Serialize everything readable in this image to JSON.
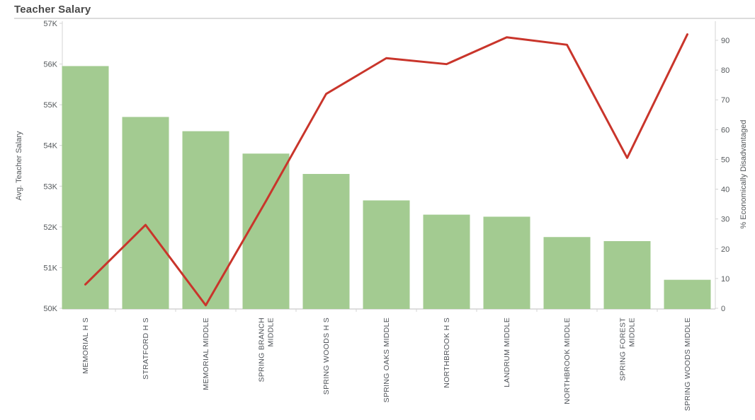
{
  "title": "Teacher Salary",
  "chart_data": {
    "type": "bar",
    "subtype": "combo bar + line, dual axis",
    "title": "Teacher Salary",
    "categories": [
      "MEMORIAL H S",
      "STRATFORD H S",
      "MEMORIAL MIDDLE",
      "SPRING BRANCH MIDDLE",
      "SPRING WOODS H S",
      "SPRING OAKS MIDDLE",
      "NORTHBROOK H S",
      "LANDRUM MIDDLE",
      "NORTHBROOK MIDDLE",
      "SPRING FOREST MIDDLE",
      "SPRING WOODS MIDDLE"
    ],
    "category_label_lines": [
      [
        "MEMORIAL H S"
      ],
      [
        "STRATFORD H S"
      ],
      [
        "MEMORIAL MIDDLE"
      ],
      [
        "SPRING BRANCH",
        "MIDDLE"
      ],
      [
        "SPRING WOODS H S"
      ],
      [
        "SPRING OAKS MIDDLE"
      ],
      [
        "NORTHBROOK H S"
      ],
      [
        "LANDRUM MIDDLE"
      ],
      [
        "NORTHBROOK MIDDLE"
      ],
      [
        "SPRING FOREST",
        "MIDDLE"
      ],
      [
        "SPRING WOODS MIDDLE"
      ]
    ],
    "series": [
      {
        "name": "Avg. Teacher Salary",
        "type": "bar",
        "axis": "left",
        "color": "#a3cb91",
        "values": [
          55950,
          54700,
          54350,
          53800,
          53300,
          52650,
          52300,
          52250,
          51750,
          51650,
          50700
        ]
      },
      {
        "name": "% Economically Disadvantaged",
        "type": "line",
        "axis": "right",
        "color": "#c9352b",
        "values": [
          8,
          28,
          1,
          36,
          72,
          84,
          82,
          91,
          88.5,
          50.5,
          92
        ]
      }
    ],
    "left_axis": {
      "title": "Avg. Teacher Salary",
      "min": 50000,
      "max": 57000,
      "tick_labels": [
        "57K",
        "56K",
        "55K",
        "54K",
        "53K",
        "52K",
        "51K",
        "50K"
      ],
      "tick_values": [
        57000,
        56000,
        55000,
        54000,
        53000,
        52000,
        51000,
        50000
      ]
    },
    "right_axis": {
      "title": "% Economically Disadvantaged",
      "min": 0,
      "max": 90,
      "tick_labels": [
        "90",
        "80",
        "70",
        "60",
        "50",
        "40",
        "30",
        "20",
        "10",
        "0"
      ],
      "tick_values": [
        90,
        80,
        70,
        60,
        50,
        40,
        30,
        20,
        10,
        0
      ]
    },
    "grid": false,
    "legend": "none"
  },
  "colors": {
    "bar": "#a3cb91",
    "line": "#c9352b",
    "title_text": "#4a4a4a",
    "axis_text": "#55595c",
    "axis_line_light": "#d4d4d4",
    "axis_line_bottom": "#bdbdbd",
    "divider": "#dcdcdc",
    "background": "#ffffff"
  }
}
